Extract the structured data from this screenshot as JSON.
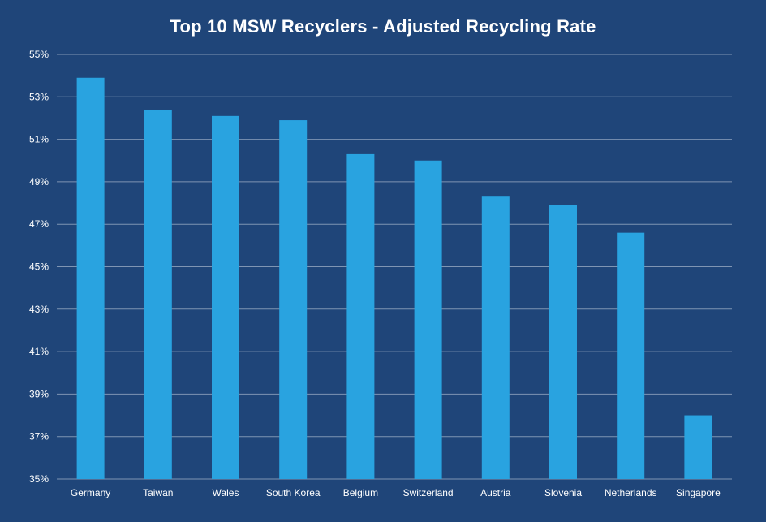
{
  "chart_data": {
    "type": "bar",
    "title": "Top 10 MSW Recyclers - Adjusted Recycling Rate",
    "xlabel": "",
    "ylabel": "",
    "categories": [
      "Germany",
      "Taiwan",
      "Wales",
      "South Korea",
      "Belgium",
      "Switzerland",
      "Austria",
      "Slovenia",
      "Netherlands",
      "Singapore"
    ],
    "values": [
      53.9,
      52.4,
      52.1,
      51.9,
      50.3,
      50.0,
      48.3,
      47.9,
      46.6,
      38.0
    ],
    "ylim": [
      35,
      55
    ],
    "yticks": [
      "35%",
      "37%",
      "39%",
      "41%",
      "43%",
      "45%",
      "47%",
      "49%",
      "51%",
      "53%",
      "55%"
    ],
    "grid": true,
    "legend": "none",
    "colors": {
      "background": "#1f4579",
      "bar": "#29a3e0",
      "gridline": "#7f95b3",
      "text": "#ffffff"
    }
  }
}
